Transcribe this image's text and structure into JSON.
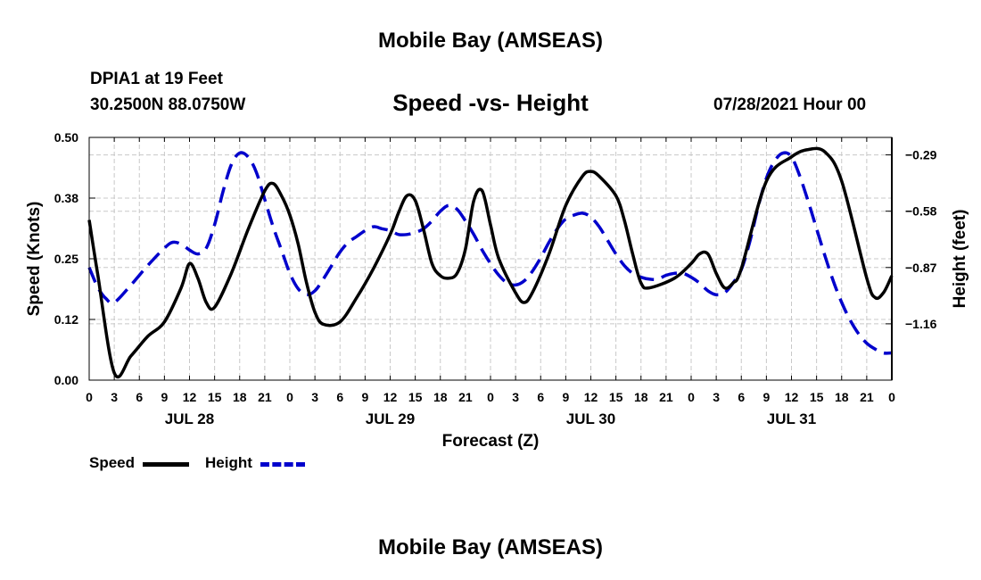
{
  "header": {
    "title": "Mobile Bay (AMSEAS)",
    "footer_title": "Mobile Bay (AMSEAS)",
    "station": "DPIA1 at 19 Feet",
    "coords": "30.2500N  88.0750W",
    "forecast_time": "07/28/2021 Hour 00"
  },
  "legend": {
    "speed_label": "Speed",
    "height_label": "Height"
  },
  "colors": {
    "speed": "#000000",
    "height": "#0000cc",
    "grid": "#c8c8c8"
  },
  "chart_data": {
    "type": "line",
    "title": "Speed -vs- Height",
    "xlabel": "Forecast (Z)",
    "ylabel": "Speed (Knots)",
    "ylabel_right": "Height (feet)",
    "xlim": [
      0,
      96
    ],
    "ylim": [
      0,
      0.5
    ],
    "ylim_right": [
      -1.45,
      -0.2
    ],
    "x_ticks": [
      0,
      3,
      6,
      9,
      12,
      15,
      18,
      21,
      24,
      27,
      30,
      33,
      36,
      39,
      42,
      45,
      48,
      51,
      54,
      57,
      60,
      63,
      66,
      69,
      72,
      75,
      78,
      81,
      84,
      87,
      90,
      93,
      96
    ],
    "x_tick_labels": [
      "0",
      "3",
      "6",
      "9",
      "12",
      "15",
      "18",
      "21",
      "0",
      "3",
      "6",
      "9",
      "12",
      "15",
      "18",
      "21",
      "0",
      "3",
      "6",
      "9",
      "12",
      "15",
      "18",
      "21",
      "0",
      "3",
      "6",
      "9",
      "12",
      "15",
      "18",
      "21",
      "0"
    ],
    "day_labels": [
      {
        "x": 12,
        "label": "JUL 28"
      },
      {
        "x": 36,
        "label": "JUL 29"
      },
      {
        "x": 60,
        "label": "JUL 30"
      },
      {
        "x": 84,
        "label": "JUL 31"
      }
    ],
    "y_ticks": [
      0.0,
      0.125,
      0.25,
      0.375,
      0.5
    ],
    "y_tick_labels": [
      "0.00",
      "0.12",
      "0.25",
      "0.38",
      "0.50"
    ],
    "y_right_ticks": [
      -1.16,
      -0.87,
      -0.58,
      -0.29
    ],
    "y_right_tick_labels": [
      "−1.16",
      "−0.87",
      "−0.58",
      "−0.29"
    ],
    "grid": true,
    "series": [
      {
        "name": "Speed",
        "axis": "left",
        "style": "solid",
        "x": [
          0,
          1,
          3,
          5,
          7,
          9,
          11,
          12,
          13,
          14,
          15,
          17,
          19,
          21,
          22,
          23,
          24,
          25,
          26,
          27,
          28,
          30,
          32,
          34,
          36,
          37,
          38,
          39,
          40,
          41,
          42,
          43,
          44,
          45,
          46,
          47,
          48,
          49,
          51,
          52,
          53,
          55,
          57,
          59,
          60,
          61,
          63,
          64,
          65,
          66,
          67,
          70,
          72,
          73,
          74,
          75,
          76,
          77,
          78,
          81,
          84,
          86,
          88,
          90,
          93,
          94,
          95,
          96
        ],
        "y": [
          0.33,
          0.22,
          0.015,
          0.05,
          0.09,
          0.12,
          0.19,
          0.24,
          0.21,
          0.16,
          0.15,
          0.22,
          0.31,
          0.39,
          0.405,
          0.38,
          0.34,
          0.28,
          0.2,
          0.14,
          0.115,
          0.12,
          0.17,
          0.23,
          0.3,
          0.345,
          0.38,
          0.37,
          0.31,
          0.24,
          0.215,
          0.21,
          0.22,
          0.27,
          0.37,
          0.39,
          0.32,
          0.25,
          0.18,
          0.16,
          0.18,
          0.26,
          0.36,
          0.42,
          0.43,
          0.42,
          0.38,
          0.33,
          0.26,
          0.2,
          0.19,
          0.21,
          0.24,
          0.26,
          0.26,
          0.22,
          0.19,
          0.2,
          0.23,
          0.41,
          0.46,
          0.475,
          0.47,
          0.41,
          0.21,
          0.17,
          0.18,
          0.215
        ]
      },
      {
        "name": "Height",
        "axis": "right",
        "style": "dashed",
        "x": [
          0,
          1,
          2,
          3,
          5,
          7,
          9,
          10,
          11,
          12,
          13,
          14,
          15,
          16,
          17,
          18,
          19,
          20,
          21,
          22,
          23,
          24,
          25,
          26,
          27,
          28,
          29,
          30,
          31,
          32,
          33,
          34,
          35,
          36,
          37,
          38,
          39,
          40,
          41,
          42,
          43,
          44,
          45,
          46,
          47,
          48,
          49,
          50,
          51,
          52,
          53,
          54,
          55,
          56,
          57,
          58,
          59,
          60,
          61,
          62,
          63,
          64,
          65,
          66,
          67,
          68,
          69,
          70,
          71,
          72,
          73,
          74,
          75,
          76,
          77,
          78,
          79,
          80,
          81,
          82,
          83,
          84,
          85,
          86,
          87,
          88,
          89,
          90,
          91,
          92,
          93,
          94,
          95,
          96
        ],
        "y": [
          -0.87,
          -0.97,
          -1.03,
          -1.05,
          -0.96,
          -0.86,
          -0.77,
          -0.74,
          -0.75,
          -0.78,
          -0.8,
          -0.77,
          -0.65,
          -0.48,
          -0.34,
          -0.28,
          -0.3,
          -0.38,
          -0.52,
          -0.66,
          -0.78,
          -0.9,
          -0.98,
          -1.01,
          -0.99,
          -0.93,
          -0.86,
          -0.79,
          -0.74,
          -0.71,
          -0.68,
          -0.66,
          -0.67,
          -0.68,
          -0.7,
          -0.7,
          -0.69,
          -0.67,
          -0.63,
          -0.58,
          -0.55,
          -0.57,
          -0.63,
          -0.7,
          -0.78,
          -0.85,
          -0.91,
          -0.95,
          -0.96,
          -0.94,
          -0.89,
          -0.82,
          -0.74,
          -0.67,
          -0.62,
          -0.6,
          -0.59,
          -0.61,
          -0.66,
          -0.73,
          -0.8,
          -0.86,
          -0.9,
          -0.92,
          -0.93,
          -0.93,
          -0.91,
          -0.9,
          -0.9,
          -0.92,
          -0.95,
          -0.99,
          -1.01,
          -1.0,
          -0.95,
          -0.88,
          -0.74,
          -0.56,
          -0.41,
          -0.32,
          -0.28,
          -0.3,
          -0.4,
          -0.53,
          -0.67,
          -0.81,
          -0.94,
          -1.05,
          -1.14,
          -1.21,
          -1.26,
          -1.29,
          -1.31,
          -1.31
        ]
      }
    ]
  }
}
